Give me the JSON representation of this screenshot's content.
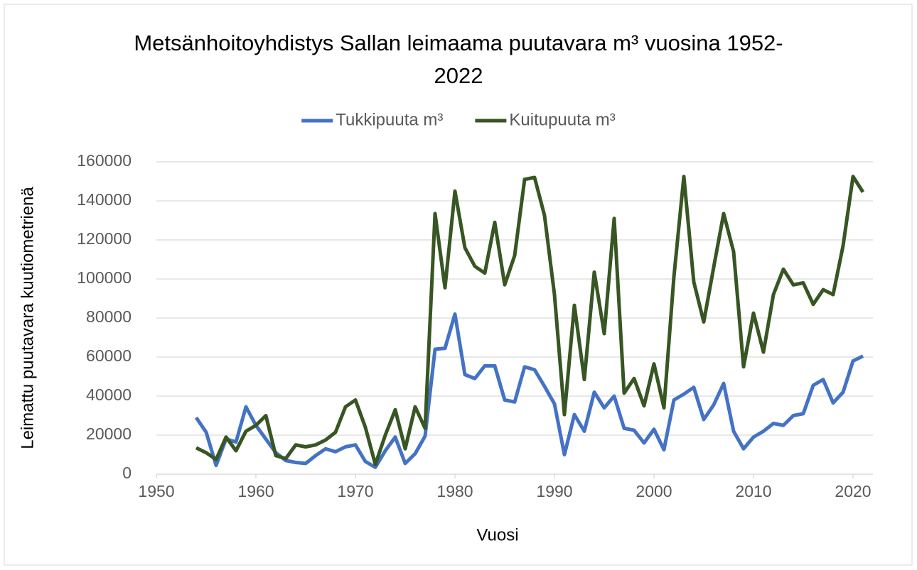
{
  "chart_data": {
    "type": "line",
    "title": "Metsänhoitoyhdistys Sallan leimaama puutavara m³ vuosina 1952-2022",
    "x_label": "Vuosi",
    "y_label": "Leimattu puutavara kuutiometrienä",
    "x": [
      1954,
      1955,
      1956,
      1957,
      1958,
      1959,
      1960,
      1961,
      1962,
      1963,
      1964,
      1965,
      1966,
      1967,
      1968,
      1969,
      1970,
      1971,
      1972,
      1973,
      1974,
      1975,
      1976,
      1977,
      1978,
      1979,
      1980,
      1981,
      1982,
      1983,
      1984,
      1985,
      1986,
      1987,
      1988,
      1989,
      1990,
      1991,
      1992,
      1993,
      1994,
      1995,
      1996,
      1997,
      1998,
      1999,
      2000,
      2001,
      2002,
      2003,
      2004,
      2005,
      2006,
      2007,
      2008,
      2009,
      2010,
      2011,
      2012,
      2013,
      2014,
      2015,
      2016,
      2017,
      2018,
      2019,
      2020,
      2021
    ],
    "series": [
      {
        "name": "Tukkipuuta m³",
        "color": "#4472c4",
        "values": [
          29000,
          21500,
          4500,
          18000,
          16500,
          34500,
          25000,
          18000,
          11000,
          7000,
          6000,
          5500,
          9500,
          13000,
          11500,
          14000,
          15000,
          6500,
          3500,
          12000,
          19000,
          5500,
          10500,
          19500,
          64000,
          64500,
          82000,
          51000,
          49000,
          55500,
          55500,
          38000,
          37000,
          55000,
          53500,
          45000,
          36000,
          10000,
          30500,
          22000,
          42000,
          34000,
          40000,
          23500,
          22500,
          16000,
          23000,
          12500,
          38000,
          41000,
          44500,
          28000,
          35500,
          46500,
          22000,
          13000,
          19000,
          22000,
          26000,
          25000,
          30000,
          31000,
          45500,
          48500,
          36500,
          42000,
          58000,
          60500
        ]
      },
      {
        "name": "Kuitupuuta m³",
        "color": "#375623",
        "values": [
          13500,
          11000,
          7500,
          19000,
          12000,
          22000,
          25000,
          30000,
          9500,
          8000,
          15000,
          14000,
          15000,
          17500,
          21500,
          34500,
          38000,
          24000,
          5000,
          20000,
          33000,
          13000,
          34500,
          23500,
          133500,
          95500,
          145000,
          116000,
          106500,
          103000,
          129000,
          97000,
          112000,
          151000,
          152000,
          132500,
          92000,
          30500,
          86500,
          48500,
          103500,
          72000,
          131000,
          41500,
          49000,
          35000,
          56500,
          34000,
          101000,
          152500,
          98500,
          78000,
          106000,
          133500,
          114000,
          55000,
          82500,
          62500,
          92000,
          105000,
          97000,
          98000,
          87000,
          94500,
          92000,
          117000,
          152500,
          144500
        ]
      }
    ],
    "xlim": [
      1950,
      2022
    ],
    "xticks": [
      1950,
      1960,
      1970,
      1980,
      1990,
      2000,
      2010,
      2020
    ],
    "ylim": [
      0,
      160000
    ],
    "yticks": [
      0,
      20000,
      40000,
      60000,
      80000,
      100000,
      120000,
      140000,
      160000
    ],
    "grid": true,
    "legend": "top"
  }
}
